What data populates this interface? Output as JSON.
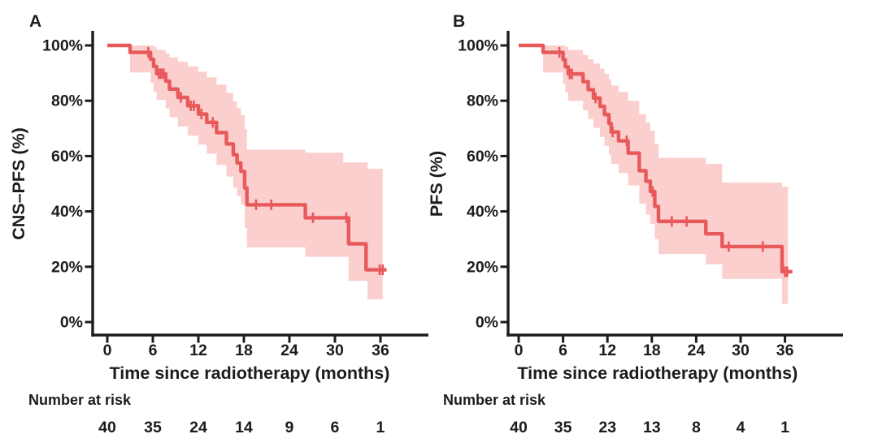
{
  "figure": {
    "background_color": "#ffffff",
    "text_color": "#1c1c1c",
    "accent_color": "#e8595c"
  },
  "chart_data": [
    {
      "type": "line",
      "subtype": "kaplan_meier_step",
      "panel_label": "A",
      "title": "",
      "xlabel": "Time since radiotherapy (months)",
      "ylabel": "CNS–PFS (%)",
      "x_ticks": [
        0,
        6,
        12,
        18,
        24,
        30,
        36
      ],
      "y_tick_values": [
        100,
        80,
        60,
        40,
        20,
        0
      ],
      "y_tick_labels": [
        "100%",
        "80%",
        "60%",
        "40%",
        "20%",
        "0%"
      ],
      "xlim": [
        0,
        42
      ],
      "ylim": [
        0,
        105
      ],
      "grid": false,
      "legend": "none",
      "line_color": "#e8595c",
      "band_color": "#facfcd",
      "steps": [
        [
          0,
          100
        ],
        [
          3.0,
          97.5
        ],
        [
          5.7,
          95.0
        ],
        [
          6.1,
          92.4
        ],
        [
          6.5,
          89.8
        ],
        [
          7.7,
          87.1
        ],
        [
          8.2,
          84.2
        ],
        [
          9.3,
          81.2
        ],
        [
          10.6,
          78.2
        ],
        [
          12.0,
          75.2
        ],
        [
          13.1,
          72.2
        ],
        [
          14.4,
          68.5
        ],
        [
          15.7,
          64.4
        ],
        [
          16.6,
          60.5
        ],
        [
          17.1,
          57.5
        ],
        [
          17.6,
          54.5
        ],
        [
          18.1,
          48.5
        ],
        [
          18.4,
          42.4
        ],
        [
          26.1,
          37.7
        ],
        [
          31.8,
          28.3
        ],
        [
          34.1,
          18.9
        ]
      ],
      "curve_end": 36.8,
      "censors": [
        [
          5.4,
          97.5
        ],
        [
          6.8,
          89.8
        ],
        [
          7.1,
          89.8
        ],
        [
          7.4,
          89.8
        ],
        [
          9.7,
          81.2
        ],
        [
          11.0,
          78.2
        ],
        [
          11.4,
          78.2
        ],
        [
          12.4,
          75.2
        ],
        [
          13.9,
          72.2
        ],
        [
          19.6,
          42.4
        ],
        [
          21.6,
          42.4
        ],
        [
          27.1,
          37.7
        ],
        [
          31.5,
          37.7
        ],
        [
          35.9,
          18.9
        ],
        [
          36.3,
          18.9
        ]
      ],
      "band": [
        [
          3.0,
          90.2,
          100
        ],
        [
          5.7,
          86.5,
          100
        ],
        [
          6.1,
          83.3,
          99.4
        ],
        [
          6.5,
          80.3,
          98.4
        ],
        [
          7.7,
          77.2,
          97.1
        ],
        [
          8.2,
          74.0,
          95.7
        ],
        [
          9.3,
          70.7,
          94.1
        ],
        [
          10.6,
          67.4,
          92.4
        ],
        [
          12.0,
          64.1,
          90.5
        ],
        [
          13.1,
          60.9,
          88.5
        ],
        [
          14.4,
          56.8,
          85.8
        ],
        [
          15.7,
          52.6,
          82.8
        ],
        [
          16.6,
          48.6,
          79.8
        ],
        [
          17.1,
          45.6,
          77.3
        ],
        [
          17.6,
          42.6,
          74.8
        ],
        [
          18.1,
          34.0,
          69.8
        ],
        [
          18.4,
          27.0,
          62.3
        ],
        [
          26.1,
          23.6,
          61.2
        ],
        [
          31.1,
          23.6,
          57.7
        ],
        [
          31.8,
          14.9,
          57.7
        ],
        [
          34.3,
          8.2,
          55.4
        ]
      ],
      "band_end": 36.3,
      "number_at_risk": {
        "label": "Number at risk",
        "times": [
          0,
          6,
          12,
          18,
          24,
          30,
          36
        ],
        "values": [
          40,
          35,
          24,
          14,
          9,
          6,
          1
        ]
      }
    },
    {
      "type": "line",
      "subtype": "kaplan_meier_step",
      "panel_label": "B",
      "title": "",
      "xlabel": "Time since radiotherapy (months)",
      "ylabel": "PFS (%)",
      "x_ticks": [
        0,
        6,
        12,
        18,
        24,
        30,
        36
      ],
      "y_tick_values": [
        100,
        80,
        60,
        40,
        20,
        0
      ],
      "y_tick_labels": [
        "100%",
        "80%",
        "60%",
        "40%",
        "20%",
        "0%"
      ],
      "xlim": [
        0,
        42
      ],
      "ylim": [
        0,
        105
      ],
      "grid": false,
      "legend": "none",
      "line_color": "#e8595c",
      "band_color": "#facfcd",
      "steps": [
        [
          0,
          100
        ],
        [
          3.3,
          97.5
        ],
        [
          6.0,
          94.9
        ],
        [
          6.3,
          92.3
        ],
        [
          6.7,
          89.7
        ],
        [
          8.7,
          86.9
        ],
        [
          9.4,
          84.0
        ],
        [
          10.1,
          81.0
        ],
        [
          11.0,
          78.0
        ],
        [
          11.6,
          75.0
        ],
        [
          12.2,
          71.8
        ],
        [
          12.5,
          68.7
        ],
        [
          13.5,
          65.5
        ],
        [
          14.8,
          61.1
        ],
        [
          16.3,
          54.7
        ],
        [
          17.2,
          50.9
        ],
        [
          17.8,
          47.2
        ],
        [
          18.4,
          41.8
        ],
        [
          18.9,
          36.4
        ],
        [
          25.3,
          31.9
        ],
        [
          27.5,
          27.3
        ],
        [
          35.6,
          18.2
        ]
      ],
      "curve_end": 37.0,
      "censors": [
        [
          5.5,
          97.5
        ],
        [
          6.9,
          89.7
        ],
        [
          7.2,
          89.7
        ],
        [
          10.4,
          81.0
        ],
        [
          12.7,
          68.7
        ],
        [
          14.6,
          65.5
        ],
        [
          18.1,
          47.2
        ],
        [
          20.7,
          36.4
        ],
        [
          22.7,
          36.4
        ],
        [
          28.4,
          27.3
        ],
        [
          33.0,
          27.3
        ],
        [
          36.0,
          18.2
        ],
        [
          36.3,
          18.2
        ]
      ],
      "band": [
        [
          3.3,
          90.2,
          100
        ],
        [
          6.0,
          86.2,
          100
        ],
        [
          6.3,
          83.0,
          99.4
        ],
        [
          6.7,
          79.9,
          98.3
        ],
        [
          8.7,
          76.6,
          96.5
        ],
        [
          9.4,
          73.4,
          95.0
        ],
        [
          10.1,
          70.2,
          93.4
        ],
        [
          11.0,
          66.9,
          91.6
        ],
        [
          11.6,
          63.7,
          89.7
        ],
        [
          12.2,
          60.4,
          87.7
        ],
        [
          12.5,
          57.2,
          85.5
        ],
        [
          13.5,
          53.9,
          83.2
        ],
        [
          14.8,
          49.4,
          80.0
        ],
        [
          16.3,
          42.8,
          75.1
        ],
        [
          17.2,
          38.9,
          72.1
        ],
        [
          17.8,
          35.4,
          69.2
        ],
        [
          18.4,
          30.0,
          64.5
        ],
        [
          18.9,
          24.6,
          59.4
        ],
        [
          25.3,
          20.9,
          57.2
        ],
        [
          27.5,
          15.6,
          50.4
        ],
        [
          35.6,
          6.6,
          48.9
        ]
      ],
      "band_end": 36.4,
      "number_at_risk": {
        "label": "Number at risk",
        "times": [
          0,
          6,
          12,
          18,
          24,
          30,
          36
        ],
        "values": [
          40,
          35,
          23,
          13,
          8,
          4,
          1
        ]
      }
    }
  ]
}
